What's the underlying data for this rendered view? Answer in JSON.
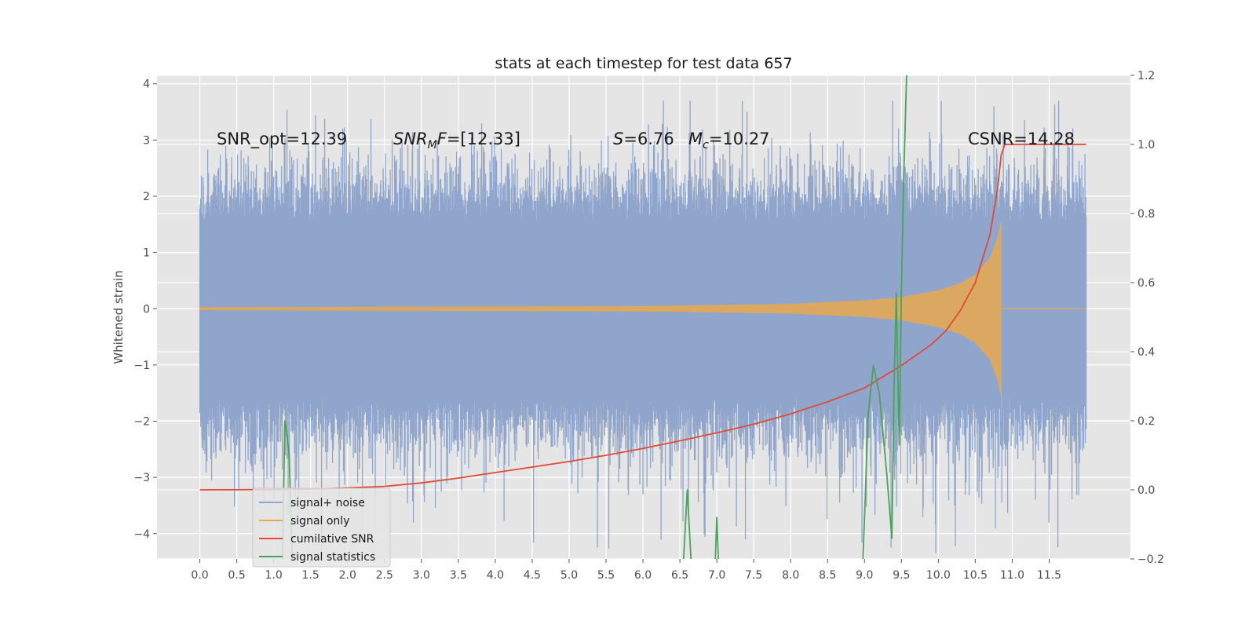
{
  "chart_data": {
    "type": "line",
    "title": "stats at each timestep for test data 657",
    "ylabel": "Whitened strain",
    "xlim": [
      -0.58,
      12.6
    ],
    "ylim": [
      -4.45,
      4.15
    ],
    "y2lim": [
      -0.2,
      1.2
    ],
    "x_ticks": [
      "0.0",
      "0.5",
      "1.0",
      "1.5",
      "2.0",
      "2.5",
      "3.0",
      "3.5",
      "4.0",
      "4.5",
      "5.0",
      "5.5",
      "6.0",
      "6.5",
      "7.0",
      "7.5",
      "8.0",
      "8.5",
      "9.0",
      "9.5",
      "10.0",
      "10.5",
      "11.0",
      "11.5"
    ],
    "y_ticks": [
      "4",
      "3",
      "2",
      "1",
      "0",
      "−1",
      "−2",
      "−3",
      "−4"
    ],
    "y2_ticks": [
      "1.2",
      "1.0",
      "0.8",
      "0.6",
      "0.4",
      "0.2",
      "0.0",
      "−0.2"
    ],
    "grid": true,
    "legend_position": "lower-left",
    "annotations": {
      "snr_opt": "SNR_opt=12.39",
      "snr_mf_main": "SNR",
      "snr_mf_sub": "M",
      "snr_mf_f": "F",
      "snr_mf_val": "=[12.33]",
      "s_sym": "S",
      "s_val": "=6.76",
      "mc_sym": "M",
      "mc_sub": "c",
      "mc_val": "=10.27",
      "csnr": "CSNR=14.28"
    },
    "series": [
      {
        "name": "signal+ noise",
        "color": "#8fa5cb",
        "axis": "left",
        "x_range": [
          0.0,
          12.0
        ],
        "amplitude": 1.7,
        "spike_peak": 3.7
      },
      {
        "name": "signal only",
        "color": "#e8a84f",
        "axis": "left",
        "x_range": [
          0.0,
          12.0
        ],
        "chirp_end": 10.85,
        "envelope": [
          [
            0.0,
            0.02
          ],
          [
            6.0,
            0.04
          ],
          [
            8.0,
            0.08
          ],
          [
            9.0,
            0.14
          ],
          [
            9.5,
            0.2
          ],
          [
            10.0,
            0.32
          ],
          [
            10.3,
            0.45
          ],
          [
            10.5,
            0.6
          ],
          [
            10.7,
            0.9
          ],
          [
            10.8,
            1.25
          ],
          [
            10.85,
            1.55
          ]
        ]
      },
      {
        "name": "cumilative SNR",
        "color": "#e24a33",
        "axis": "right",
        "x": [
          0.0,
          1.0,
          1.7,
          2.5,
          3.0,
          3.5,
          4.0,
          4.5,
          5.0,
          5.5,
          6.0,
          6.5,
          7.0,
          7.5,
          8.0,
          8.5,
          9.0,
          9.5,
          9.9,
          10.1,
          10.3,
          10.5,
          10.6,
          10.7,
          10.8,
          10.85,
          10.9,
          11.0,
          11.5,
          12.0
        ],
        "y": [
          0.0,
          0.001,
          0.003,
          0.01,
          0.02,
          0.034,
          0.05,
          0.066,
          0.082,
          0.1,
          0.12,
          0.142,
          0.165,
          0.19,
          0.22,
          0.255,
          0.295,
          0.36,
          0.42,
          0.46,
          0.52,
          0.6,
          0.67,
          0.74,
          0.87,
          0.97,
          1.0,
          1.0,
          1.0,
          1.0
        ]
      },
      {
        "name": "signal statistics",
        "color": "#4aa35a",
        "axis": "right",
        "x": [
          1.12,
          1.15,
          1.18,
          1.21,
          1.25,
          null,
          6.55,
          6.6,
          6.65,
          null,
          6.98,
          7.0,
          7.02,
          null,
          8.98,
          9.05,
          9.12,
          9.2,
          9.3,
          9.37,
          9.4,
          9.43,
          9.47,
          9.5,
          9.53,
          9.57
        ],
        "y": [
          -0.2,
          0.2,
          0.16,
          0.1,
          -0.2,
          null,
          -0.2,
          0.0,
          -0.2,
          null,
          -0.2,
          -0.08,
          -0.2,
          null,
          -0.2,
          0.22,
          0.36,
          0.28,
          0.05,
          -0.14,
          0.3,
          0.57,
          0.13,
          0.58,
          0.9,
          1.2
        ]
      }
    ]
  }
}
